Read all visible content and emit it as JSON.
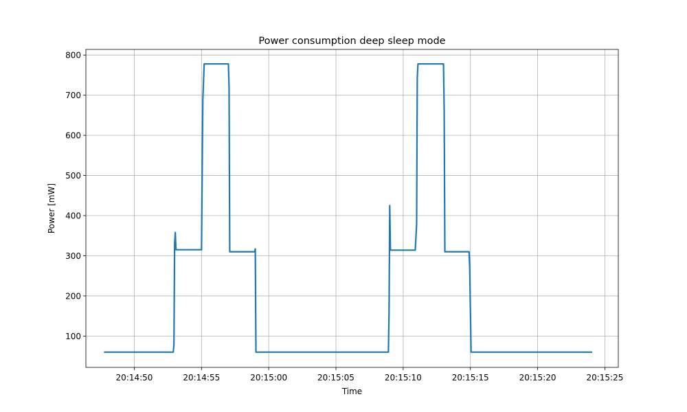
{
  "chart_data": {
    "type": "line",
    "title": "Power consumption deep sleep mode",
    "xlabel": "Time",
    "ylabel": "Power [mW]",
    "x_unit": "time of day (HH:MM:SS)",
    "xlim": [
      "20:14:46.4",
      "20:15:26.0"
    ],
    "ylim": [
      22,
      814
    ],
    "x_ticks": [
      "20:14:50",
      "20:14:55",
      "20:15:00",
      "20:15:05",
      "20:15:10",
      "20:15:15",
      "20:15:20",
      "20:15:25"
    ],
    "y_ticks": [
      100,
      200,
      300,
      400,
      500,
      600,
      700,
      800
    ],
    "grid": true,
    "legend": "none",
    "series": [
      {
        "color": "#1f77b4",
        "points": [
          [
            "20:14:47.8",
            60
          ],
          [
            "20:14:52.9",
            60
          ],
          [
            "20:14:52.95",
            80
          ],
          [
            "20:14:53.0",
            330
          ],
          [
            "20:14:53.05",
            358
          ],
          [
            "20:14:53.1",
            315
          ],
          [
            "20:14:55.0",
            315
          ],
          [
            "20:14:55.1",
            690
          ],
          [
            "20:14:55.2",
            778
          ],
          [
            "20:14:57.0",
            778
          ],
          [
            "20:14:57.05",
            720
          ],
          [
            "20:14:57.1",
            310
          ],
          [
            "20:14:58.95",
            310
          ],
          [
            "20:14:59.0",
            317
          ],
          [
            "20:14:59.05",
            60
          ],
          [
            "20:15:08.9",
            60
          ],
          [
            "20:15:08.95",
            160
          ],
          [
            "20:15:09.0",
            425
          ],
          [
            "20:15:09.05",
            314
          ],
          [
            "20:15:10.9",
            314
          ],
          [
            "20:15:11.0",
            380
          ],
          [
            "20:15:11.05",
            745
          ],
          [
            "20:15:11.1",
            778
          ],
          [
            "20:15:13.0",
            778
          ],
          [
            "20:15:13.05",
            660
          ],
          [
            "20:15:13.1",
            310
          ],
          [
            "20:15:14.9",
            310
          ],
          [
            "20:15:14.95",
            270
          ],
          [
            "20:15:15.05",
            60
          ],
          [
            "20:15:24.0",
            60
          ]
        ]
      }
    ]
  }
}
